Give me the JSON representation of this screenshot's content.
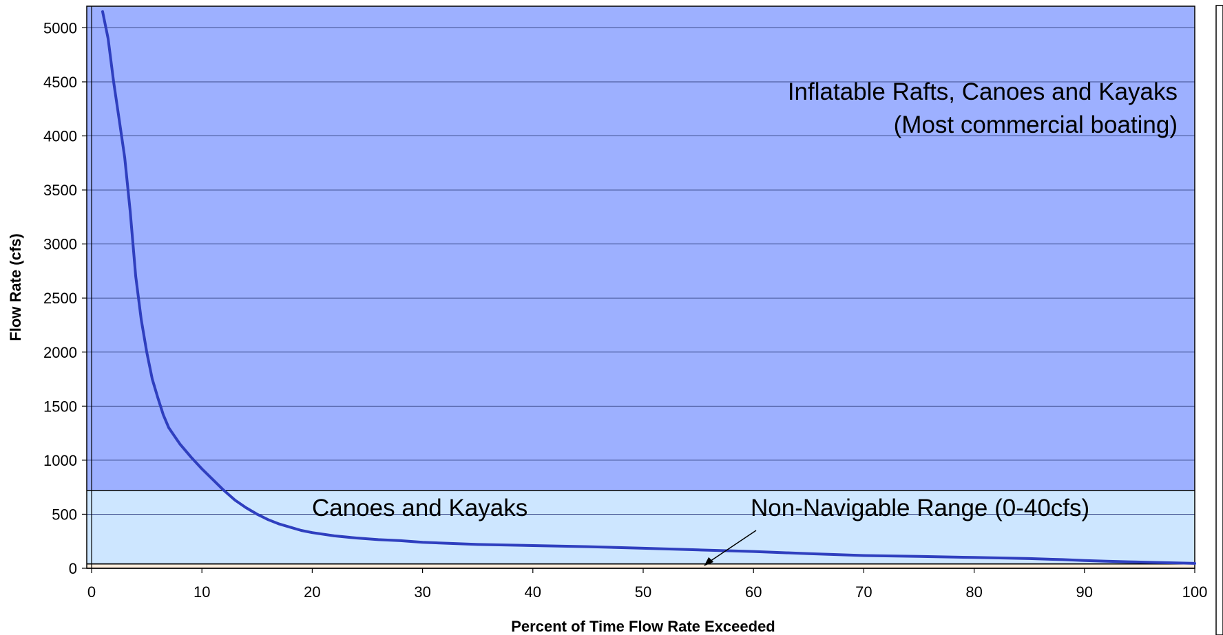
{
  "chart_data": {
    "type": "line",
    "xlabel": "Percent of Time Flow Rate Exceeded",
    "ylabel": "Flow Rate (cfs)",
    "xlim": [
      0,
      100
    ],
    "ylim": [
      0,
      5200
    ],
    "x_ticks": [
      0,
      10,
      20,
      30,
      40,
      50,
      60,
      70,
      80,
      90,
      100
    ],
    "y_ticks": [
      0,
      500,
      1000,
      1500,
      2000,
      2500,
      3000,
      3500,
      4000,
      4500,
      5000
    ],
    "grid": "horizontal",
    "zones": [
      {
        "from": 720,
        "to": 5200,
        "color": "#9db0ff",
        "label_lines": [
          "Inflatable Rafts, Canoes and Kayaks",
          "(Most commercial boating)"
        ]
      },
      {
        "from": 40,
        "to": 720,
        "color": "#cde6ff",
        "label_lines": [
          "Canoes and Kayaks"
        ]
      },
      {
        "from": 0,
        "to": 40,
        "color": "#ffeedd",
        "label_lines": [
          "Non-Navigable Range (0-40cfs)"
        ]
      }
    ],
    "series": [
      {
        "color": "#2f3fbf",
        "points": [
          [
            1,
            5150
          ],
          [
            1.5,
            4900
          ],
          [
            2,
            4500
          ],
          [
            2.5,
            4150
          ],
          [
            3,
            3800
          ],
          [
            3.5,
            3300
          ],
          [
            4,
            2700
          ],
          [
            4.5,
            2300
          ],
          [
            5,
            2000
          ],
          [
            5.5,
            1750
          ],
          [
            6,
            1580
          ],
          [
            6.5,
            1420
          ],
          [
            7,
            1300
          ],
          [
            8,
            1150
          ],
          [
            9,
            1030
          ],
          [
            10,
            920
          ],
          [
            11,
            820
          ],
          [
            12,
            720
          ],
          [
            13,
            630
          ],
          [
            14,
            560
          ],
          [
            15,
            500
          ],
          [
            16,
            450
          ],
          [
            17,
            410
          ],
          [
            18,
            380
          ],
          [
            19,
            350
          ],
          [
            20,
            330
          ],
          [
            22,
            300
          ],
          [
            24,
            280
          ],
          [
            26,
            265
          ],
          [
            28,
            255
          ],
          [
            30,
            240
          ],
          [
            35,
            220
          ],
          [
            40,
            210
          ],
          [
            45,
            200
          ],
          [
            50,
            185
          ],
          [
            55,
            170
          ],
          [
            60,
            155
          ],
          [
            65,
            135
          ],
          [
            70,
            118
          ],
          [
            75,
            110
          ],
          [
            80,
            100
          ],
          [
            85,
            90
          ],
          [
            88,
            80
          ],
          [
            90,
            72
          ],
          [
            92,
            65
          ],
          [
            94,
            60
          ],
          [
            96,
            55
          ],
          [
            98,
            50
          ],
          [
            100,
            45
          ]
        ]
      }
    ]
  }
}
